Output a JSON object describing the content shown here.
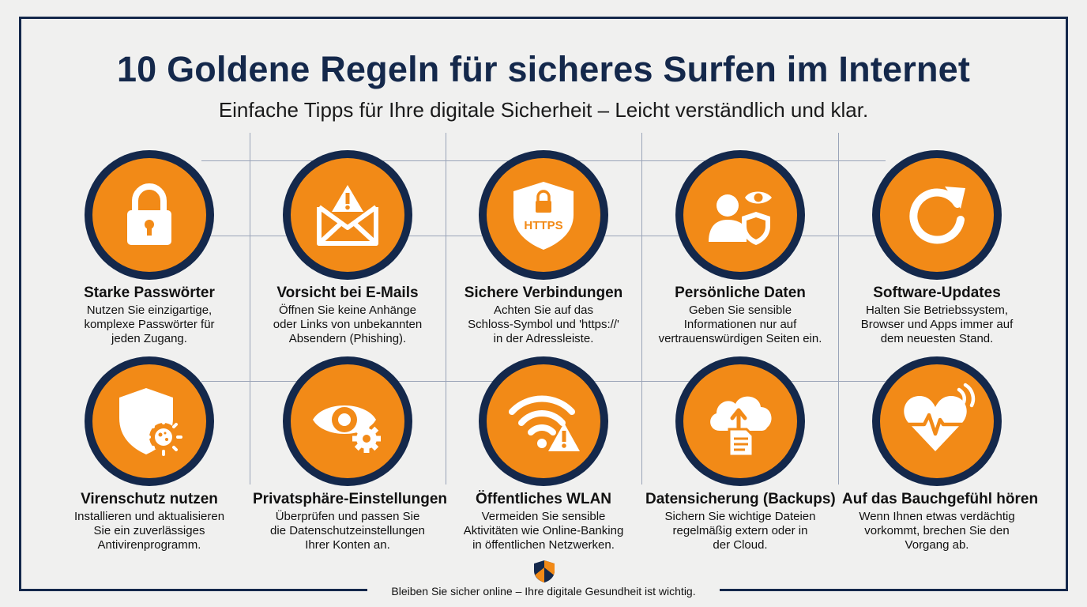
{
  "header": {
    "title": "10 Goldene Regeln für sicheres Surfen im Internet",
    "subtitle": "Einfache Tipps für Ihre digitale Sicherheit – Leicht verständlich und klar."
  },
  "rules": [
    {
      "title": "Starke Passwörter",
      "lines": [
        "Nutzen Sie einzigartige,",
        "komplexe Passwörter für",
        "jeden Zugang."
      ],
      "icon": "padlock-icon"
    },
    {
      "title": "Vorsicht bei E-Mails",
      "lines": [
        "Öffnen Sie keine Anhänge",
        "oder Links von unbekannten",
        "Absendern (Phishing)."
      ],
      "icon": "warning-envelope-icon"
    },
    {
      "title": "Sichere Verbindungen",
      "lines": [
        "Achten Sie auf das",
        "Schloss-Symbol und 'https://'",
        "in der Adressleiste."
      ],
      "icon": "https-shield-icon",
      "icon_text": "HTTPS"
    },
    {
      "title": "Persönliche Daten",
      "lines": [
        "Geben Sie sensible",
        "Informationen nur auf",
        "vertrauenswürdigen Seiten ein."
      ],
      "icon": "user-privacy-icon"
    },
    {
      "title": "Software-Updates",
      "lines": [
        "Halten Sie Betriebssystem,",
        "Browser und Apps immer auf",
        "dem neuesten Stand."
      ],
      "icon": "refresh-icon"
    },
    {
      "title": "Virenschutz nutzen",
      "lines": [
        "Installieren und aktualisieren",
        "Sie ein zuverlässiges",
        "Antivirenprogramm."
      ],
      "icon": "antivirus-shield-icon"
    },
    {
      "title": "Privatsphäre-Einstellungen",
      "lines": [
        "Überprüfen und passen Sie",
        "die Datenschutzeinstellungen",
        "Ihrer Konten an."
      ],
      "icon": "eye-settings-icon"
    },
    {
      "title": "Öffentliches WLAN",
      "lines": [
        "Vermeiden Sie sensible",
        "Aktivitäten wie Online-Banking",
        "in öffentlichen Netzwerken."
      ],
      "icon": "wifi-warning-icon"
    },
    {
      "title": "Datensicherung (Backups)",
      "lines": [
        "Sichern Sie wichtige Dateien",
        "regelmäßig extern oder in",
        "der Cloud."
      ],
      "icon": "cloud-backup-icon"
    },
    {
      "title": "Auf das Bauchgefühl hören",
      "lines": [
        "Wenn Ihnen etwas verdächtig",
        "vorkommt, brechen Sie den",
        "Vorgang ab."
      ],
      "icon": "heart-pulse-icon"
    }
  ],
  "footer": {
    "text": "Bleiben Sie sicher online – Ihre digitale Gesundheit ist wichtig.",
    "icon": "shield-logo-icon"
  },
  "colors": {
    "navy": "#14284b",
    "orange": "#f28a17",
    "background": "#f0f0ef"
  }
}
